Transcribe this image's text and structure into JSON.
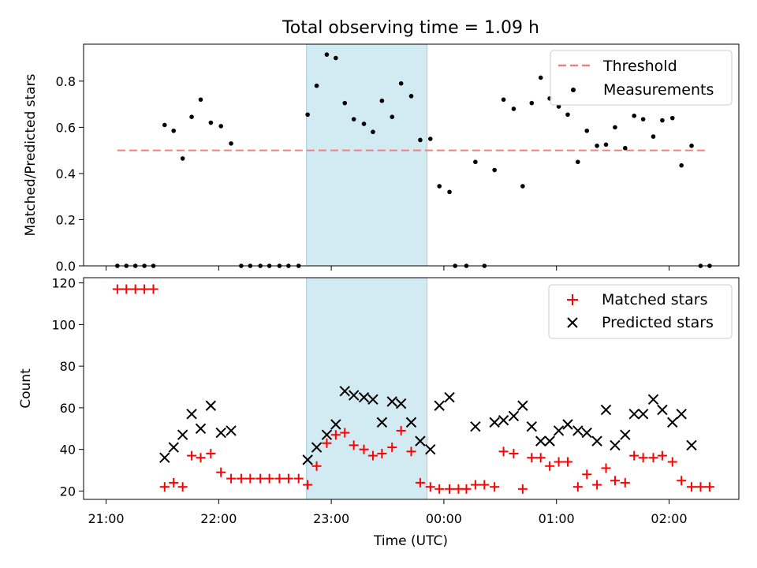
{
  "chart_data": [
    {
      "type": "scatter",
      "title": "Total observing time = 1.09 h",
      "ylabel": "Matched/Predicted stars",
      "xlabel": "",
      "ylim": [
        0,
        0.96
      ],
      "yticks": [
        "0.0",
        "0.2",
        "0.4",
        "0.6",
        "0.8"
      ],
      "highlight": {
        "x0": 22.78,
        "x1": 23.85,
        "color": "#add8e6"
      },
      "threshold": {
        "name": "Threshold",
        "value": 0.5,
        "x0": 21.1,
        "x1": 26.35,
        "color": "#f08080"
      },
      "legend": {
        "placement": "top-right",
        "entries": [
          "Threshold",
          "Measurements"
        ]
      },
      "series": [
        {
          "name": "Measurements",
          "color": "#000000",
          "x": [
            21.1,
            21.18,
            21.26,
            21.34,
            21.42,
            21.52,
            21.6,
            21.68,
            21.76,
            21.84,
            21.93,
            22.02,
            22.11,
            22.2,
            22.28,
            22.37,
            22.45,
            22.54,
            22.62,
            22.71,
            22.79,
            22.87,
            22.96,
            23.04,
            23.12,
            23.2,
            23.29,
            23.37,
            23.45,
            23.54,
            23.62,
            23.71,
            23.79,
            23.88,
            23.96,
            24.05,
            24.1,
            24.2,
            24.28,
            24.36,
            24.45,
            24.53,
            24.62,
            24.7,
            24.78,
            24.86,
            24.94,
            25.02,
            25.1,
            25.19,
            25.27,
            25.36,
            25.44,
            25.52,
            25.61,
            25.69,
            25.77,
            25.86,
            25.94,
            26.03,
            26.11,
            26.2,
            26.28,
            26.36
          ],
          "y": [
            0,
            0,
            0,
            0,
            0,
            0.61,
            0.585,
            0.465,
            0.645,
            0.72,
            0.62,
            0.605,
            0.53,
            0,
            0,
            0,
            0,
            0,
            0,
            0,
            0.655,
            0.78,
            0.915,
            0.9,
            0.705,
            0.635,
            0.615,
            0.58,
            0.715,
            0.645,
            0.79,
            0.735,
            0.545,
            0.55,
            0.345,
            0.32,
            0,
            0,
            0.45,
            0,
            0.415,
            0.72,
            0.68,
            0.345,
            0.705,
            0.815,
            0.725,
            0.69,
            0.655,
            0.45,
            0.585,
            0.52,
            0.525,
            0.6,
            0.51,
            0.65,
            0.635,
            0.56,
            0.63,
            0.64,
            0.435,
            0.52,
            0,
            0
          ]
        }
      ]
    },
    {
      "type": "scatter",
      "title": "",
      "ylabel": "Count",
      "xlabel": "Time (UTC)",
      "ylim": [
        16,
        122.5
      ],
      "yticks": [
        "20",
        "40",
        "60",
        "80",
        "100",
        "120"
      ],
      "xlim": [
        20.8,
        26.62
      ],
      "xticks": [
        {
          "value": 21,
          "label": "21:00"
        },
        {
          "value": 22,
          "label": "22:00"
        },
        {
          "value": 23,
          "label": "23:00"
        },
        {
          "value": 24,
          "label": "00:00"
        },
        {
          "value": 25,
          "label": "01:00"
        },
        {
          "value": 26,
          "label": "02:00"
        }
      ],
      "highlight": {
        "x0": 22.78,
        "x1": 23.85,
        "color": "#add8e6"
      },
      "legend": {
        "placement": "top-right",
        "entries": [
          "Matched stars",
          "Predicted stars"
        ]
      },
      "series": [
        {
          "name": "Matched stars",
          "marker": "plus",
          "color": "#ff0000",
          "x": [
            21.1,
            21.18,
            21.26,
            21.34,
            21.42,
            21.52,
            21.6,
            21.68,
            21.76,
            21.84,
            21.93,
            22.02,
            22.11,
            22.2,
            22.28,
            22.37,
            22.45,
            22.54,
            22.62,
            22.71,
            22.79,
            22.87,
            22.96,
            23.04,
            23.12,
            23.2,
            23.29,
            23.37,
            23.45,
            23.54,
            23.62,
            23.71,
            23.79,
            23.88,
            23.96,
            24.05,
            24.13,
            24.2,
            24.28,
            24.36,
            24.45,
            24.53,
            24.62,
            24.7,
            24.78,
            24.86,
            24.94,
            25.02,
            25.1,
            25.19,
            25.27,
            25.36,
            25.44,
            25.52,
            25.61,
            25.69,
            25.77,
            25.86,
            25.94,
            26.03,
            26.11,
            26.2,
            26.28,
            26.36
          ],
          "y": [
            117,
            117,
            117,
            117,
            117,
            22,
            24,
            22,
            37,
            36,
            38,
            29,
            26,
            26,
            26,
            26,
            26,
            26,
            26,
            26,
            23,
            32,
            43,
            47,
            48,
            42,
            40,
            37,
            38,
            41,
            49,
            39,
            24,
            22,
            21,
            21,
            21,
            21,
            23,
            23,
            22,
            39,
            38,
            21,
            36,
            36,
            32,
            34,
            34,
            22,
            28,
            23,
            31,
            25,
            24,
            37,
            36,
            36,
            37,
            34,
            25,
            22,
            22,
            22
          ]
        },
        {
          "name": "Predicted stars",
          "marker": "x",
          "color": "#000000",
          "x": [
            21.52,
            21.6,
            21.68,
            21.76,
            21.84,
            21.93,
            22.02,
            22.11,
            22.79,
            22.87,
            22.96,
            23.04,
            23.12,
            23.2,
            23.29,
            23.37,
            23.45,
            23.54,
            23.62,
            23.71,
            23.79,
            23.88,
            23.96,
            24.05,
            24.28,
            24.45,
            24.53,
            24.62,
            24.7,
            24.78,
            24.86,
            24.94,
            25.02,
            25.1,
            25.19,
            25.27,
            25.36,
            25.44,
            25.52,
            25.61,
            25.69,
            25.77,
            25.86,
            25.94,
            26.03,
            26.11,
            26.2
          ],
          "y": [
            36,
            41,
            47,
            57,
            50,
            61,
            48,
            49,
            35,
            41,
            47,
            52,
            68,
            66,
            65,
            64,
            53,
            63,
            62,
            53,
            44,
            40,
            61,
            65,
            51,
            53,
            54,
            56,
            61,
            51,
            44,
            44,
            49,
            52,
            49,
            48,
            44,
            59,
            42,
            47,
            57,
            57,
            64,
            59,
            53,
            57,
            42
          ]
        }
      ]
    }
  ]
}
